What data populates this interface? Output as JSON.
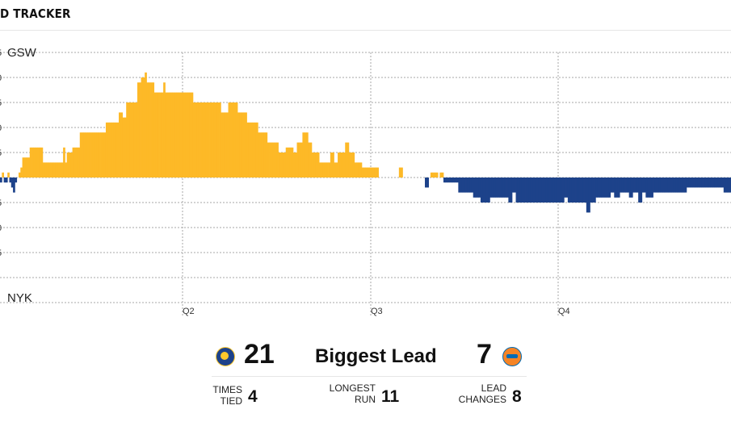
{
  "header": {
    "title": "D TRACKER"
  },
  "chart_data": {
    "type": "bar",
    "y_axis": {
      "max": 25,
      "min": -25,
      "step": 5,
      "top_label": "GSW",
      "bottom_label": "NYK",
      "tick_labels": [
        "5",
        "0",
        "5",
        "0",
        "5",
        "",
        "5",
        "0",
        "5",
        ""
      ]
    },
    "periods": [
      "Q2",
      "Q3",
      "Q4"
    ],
    "colors": {
      "gsw": "#FDB927",
      "nyk": "#1D428A",
      "grid": "#a7a7a7"
    },
    "lead": [
      -1,
      1,
      -1,
      -1,
      1,
      -1,
      -2,
      -3,
      -1,
      0,
      1,
      2,
      4,
      4,
      4,
      4,
      6,
      6,
      6,
      6,
      6,
      6,
      6,
      3,
      3,
      3,
      3,
      3,
      3,
      3,
      3,
      3,
      3,
      3,
      6,
      3,
      5,
      5,
      5,
      6,
      6,
      6,
      6,
      9,
      9,
      9,
      9,
      9,
      9,
      9,
      9,
      9,
      9,
      9,
      9,
      9,
      9,
      11,
      11,
      11,
      11,
      11,
      11,
      11,
      13,
      13,
      12,
      12,
      15,
      15,
      15,
      15,
      15,
      15,
      19,
      19,
      20,
      20,
      21,
      19,
      19,
      19,
      19,
      17,
      17,
      17,
      17,
      17,
      19,
      17,
      17,
      17,
      17,
      17,
      17,
      17,
      17,
      17,
      17,
      17,
      17,
      17,
      17,
      17,
      15,
      15,
      15,
      15,
      15,
      15,
      15,
      15,
      15,
      15,
      15,
      15,
      15,
      15,
      15,
      13,
      13,
      13,
      13,
      15,
      15,
      15,
      15,
      15,
      13,
      13,
      13,
      13,
      13,
      11,
      11,
      11,
      11,
      11,
      11,
      9,
      9,
      9,
      9,
      9,
      7,
      7,
      7,
      7,
      7,
      7,
      5,
      5,
      5,
      5,
      6,
      6,
      6,
      6,
      5,
      5,
      7,
      7,
      7,
      9,
      9,
      9,
      7,
      7,
      5,
      5,
      5,
      5,
      3,
      3,
      3,
      3,
      3,
      3,
      5,
      5,
      3,
      3,
      5,
      5,
      5,
      5,
      7,
      7,
      5,
      5,
      5,
      3,
      3,
      3,
      3,
      2,
      2,
      2,
      2,
      2,
      2,
      2,
      2,
      2,
      0,
      0,
      0,
      0,
      0,
      0,
      0,
      0,
      0,
      0,
      0,
      2,
      2,
      0,
      0,
      0,
      0,
      0,
      0,
      0,
      0,
      0,
      0,
      0,
      0,
      -2,
      -2,
      0,
      1,
      1,
      1,
      1,
      0,
      1,
      1,
      -1,
      -1,
      -1,
      -1,
      -1,
      -1,
      -1,
      -1,
      -3,
      -3,
      -3,
      -3,
      -3,
      -3,
      -3,
      -3,
      -4,
      -4,
      -4,
      -4,
      -5,
      -5,
      -5,
      -5,
      -5,
      -4,
      -4,
      -4,
      -4,
      -4,
      -4,
      -4,
      -4,
      -4,
      -4,
      -5,
      -5,
      -3,
      -3,
      -5,
      -5,
      -5,
      -5,
      -5,
      -5,
      -5,
      -5,
      -5,
      -5,
      -5,
      -5,
      -5,
      -5,
      -5,
      -5,
      -5,
      -5,
      -5,
      -5,
      -5,
      -5,
      -5,
      -5,
      -5,
      -5,
      -4,
      -4,
      -5,
      -5,
      -5,
      -5,
      -5,
      -5,
      -5,
      -5,
      -5,
      -5,
      -7,
      -7,
      -5,
      -5,
      -5,
      -4,
      -4,
      -4,
      -4,
      -4,
      -4,
      -4,
      -4,
      -3,
      -3,
      -4,
      -4,
      -4,
      -3,
      -3,
      -3,
      -3,
      -3,
      -4,
      -4,
      -3,
      -3,
      -3,
      -5,
      -5,
      -3,
      -3,
      -4,
      -4,
      -4,
      -4,
      -3,
      -3,
      -3,
      -3,
      -3,
      -3,
      -3,
      -3,
      -3,
      -3,
      -3,
      -3,
      -3,
      -3,
      -3,
      -3,
      -3,
      -3,
      -2,
      -2,
      -2,
      -2,
      -2,
      -2,
      -2,
      -2,
      -2,
      -2,
      -2,
      -2,
      -2,
      -2,
      -2,
      -2,
      -2,
      -2,
      -2,
      -2,
      -3,
      -3,
      -3,
      -3
    ]
  },
  "summary": {
    "gsw_biggest_lead": "21",
    "biggest_lead_label": "Biggest Lead",
    "nyk_biggest_lead": "7",
    "times_tied_label_1": "TIMES",
    "times_tied_label_2": "TIED",
    "times_tied": "4",
    "longest_run_label_1": "LONGEST",
    "longest_run_label_2": "RUN",
    "longest_run": "11",
    "lead_changes_label_1": "LEAD",
    "lead_changes_label_2": "CHANGES",
    "lead_changes": "8"
  }
}
